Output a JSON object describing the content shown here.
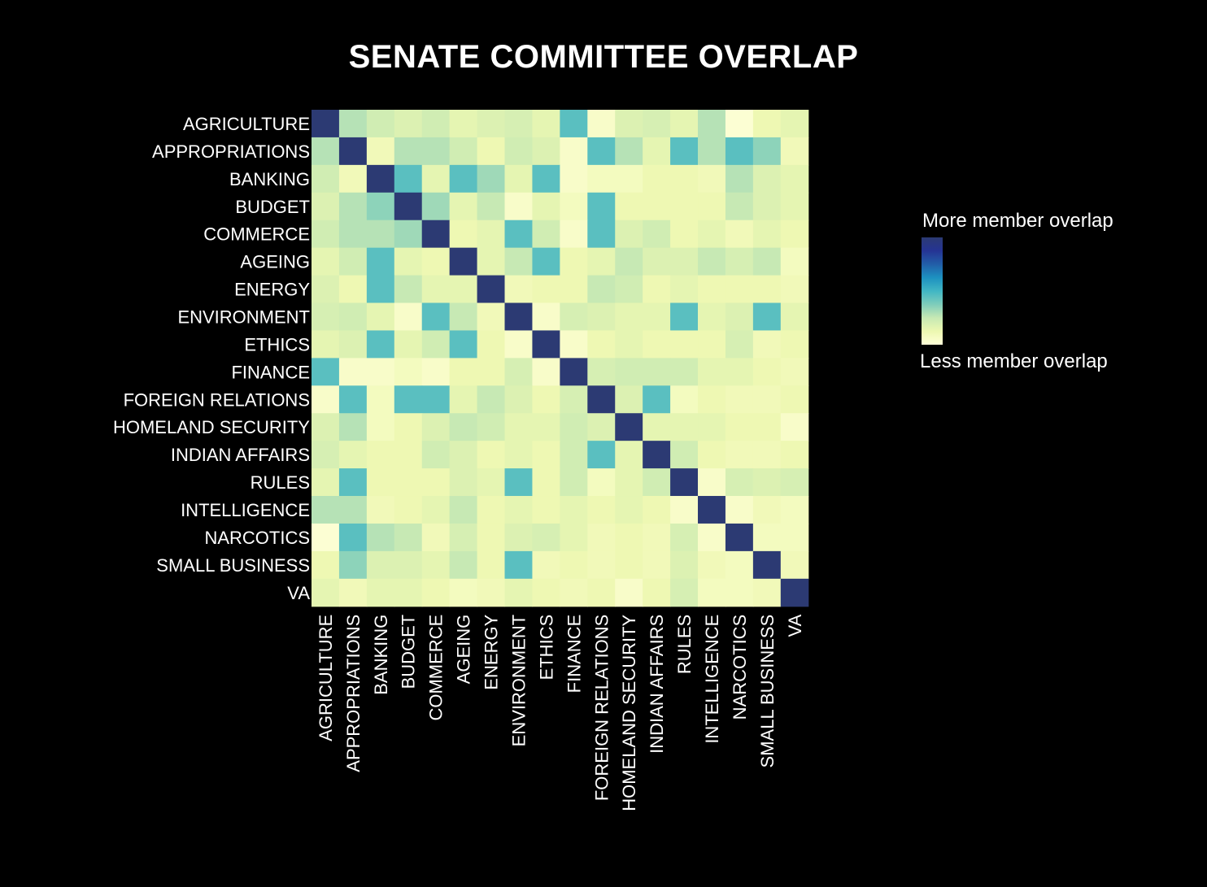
{
  "chart_data": {
    "type": "heatmap",
    "title": "SENATE COMMITTEE OVERLAP",
    "row_labels": [
      "AGRICULTURE",
      "APPROPRIATIONS",
      "BANKING",
      "BUDGET",
      "COMMERCE",
      "AGEING",
      "ENERGY",
      "ENVIRONMENT",
      "ETHICS",
      "FINANCE",
      "FOREIGN RELATIONS",
      "HOMELAND SECURITY",
      "INDIAN AFFAIRS",
      "RULES",
      "INTELLIGENCE",
      "NARCOTICS",
      "SMALL BUSINESS",
      "VA"
    ],
    "col_labels": [
      "AGRICULTURE",
      "APPROPRIATIONS",
      "BANKING",
      "BUDGET",
      "COMMERCE",
      "AGEING",
      "ENERGY",
      "ENVIRONMENT",
      "ETHICS",
      "FINANCE",
      "FOREIGN RELATIONS",
      "HOMELAND SECURITY",
      "INDIAN AFFAIRS",
      "RULES",
      "INTELLIGENCE",
      "NARCOTICS",
      "SMALL BUSINESS",
      "VA"
    ],
    "value_range": [
      0,
      1
    ],
    "values": [
      [
        1.0,
        0.28,
        0.22,
        0.18,
        0.22,
        0.15,
        0.18,
        0.2,
        0.15,
        0.45,
        0.05,
        0.18,
        0.2,
        0.15,
        0.28,
        0.02,
        0.12,
        0.15
      ],
      [
        0.28,
        1.0,
        0.1,
        0.28,
        0.28,
        0.22,
        0.12,
        0.22,
        0.18,
        0.05,
        0.45,
        0.28,
        0.15,
        0.45,
        0.28,
        0.45,
        0.35,
        0.1
      ],
      [
        0.22,
        0.1,
        1.0,
        0.45,
        0.15,
        0.45,
        0.32,
        0.15,
        0.45,
        0.05,
        0.08,
        0.08,
        0.12,
        0.12,
        0.1,
        0.28,
        0.18,
        0.15
      ],
      [
        0.18,
        0.28,
        0.35,
        1.0,
        0.32,
        0.15,
        0.25,
        0.05,
        0.15,
        0.08,
        0.45,
        0.12,
        0.12,
        0.12,
        0.12,
        0.25,
        0.18,
        0.15
      ],
      [
        0.22,
        0.28,
        0.28,
        0.32,
        1.0,
        0.12,
        0.15,
        0.45,
        0.22,
        0.05,
        0.45,
        0.18,
        0.22,
        0.12,
        0.15,
        0.1,
        0.15,
        0.12
      ],
      [
        0.15,
        0.22,
        0.45,
        0.15,
        0.12,
        1.0,
        0.15,
        0.25,
        0.45,
        0.12,
        0.15,
        0.25,
        0.18,
        0.18,
        0.25,
        0.2,
        0.25,
        0.08
      ],
      [
        0.18,
        0.12,
        0.45,
        0.25,
        0.15,
        0.15,
        1.0,
        0.1,
        0.12,
        0.12,
        0.25,
        0.22,
        0.12,
        0.15,
        0.12,
        0.12,
        0.12,
        0.1
      ],
      [
        0.2,
        0.22,
        0.15,
        0.05,
        0.45,
        0.25,
        0.1,
        1.0,
        0.05,
        0.2,
        0.18,
        0.15,
        0.15,
        0.45,
        0.15,
        0.18,
        0.45,
        0.15
      ],
      [
        0.15,
        0.18,
        0.45,
        0.15,
        0.22,
        0.45,
        0.12,
        0.05,
        1.0,
        0.05,
        0.12,
        0.15,
        0.12,
        0.12,
        0.12,
        0.2,
        0.1,
        0.12
      ],
      [
        0.45,
        0.05,
        0.05,
        0.08,
        0.05,
        0.12,
        0.12,
        0.2,
        0.05,
        1.0,
        0.2,
        0.22,
        0.22,
        0.22,
        0.15,
        0.15,
        0.12,
        0.1
      ],
      [
        0.05,
        0.45,
        0.08,
        0.45,
        0.45,
        0.15,
        0.25,
        0.18,
        0.12,
        0.2,
        1.0,
        0.18,
        0.45,
        0.08,
        0.12,
        0.1,
        0.1,
        0.12
      ],
      [
        0.18,
        0.28,
        0.08,
        0.12,
        0.18,
        0.25,
        0.22,
        0.15,
        0.15,
        0.22,
        0.18,
        1.0,
        0.15,
        0.15,
        0.15,
        0.12,
        0.12,
        0.05
      ],
      [
        0.2,
        0.15,
        0.12,
        0.12,
        0.22,
        0.18,
        0.12,
        0.15,
        0.12,
        0.22,
        0.45,
        0.15,
        1.0,
        0.22,
        0.12,
        0.1,
        0.1,
        0.12
      ],
      [
        0.15,
        0.45,
        0.12,
        0.12,
        0.12,
        0.18,
        0.15,
        0.45,
        0.12,
        0.22,
        0.08,
        0.15,
        0.22,
        1.0,
        0.05,
        0.2,
        0.18,
        0.2
      ],
      [
        0.28,
        0.28,
        0.1,
        0.12,
        0.15,
        0.25,
        0.12,
        0.15,
        0.12,
        0.15,
        0.12,
        0.15,
        0.12,
        0.05,
        1.0,
        0.05,
        0.1,
        0.08
      ],
      [
        0.02,
        0.45,
        0.28,
        0.25,
        0.1,
        0.2,
        0.12,
        0.18,
        0.2,
        0.15,
        0.1,
        0.12,
        0.1,
        0.2,
        0.05,
        1.0,
        0.08,
        0.08
      ],
      [
        0.12,
        0.35,
        0.18,
        0.18,
        0.15,
        0.25,
        0.12,
        0.45,
        0.1,
        0.12,
        0.1,
        0.12,
        0.1,
        0.18,
        0.1,
        0.08,
        1.0,
        0.1
      ],
      [
        0.15,
        0.1,
        0.15,
        0.15,
        0.12,
        0.08,
        0.1,
        0.15,
        0.12,
        0.1,
        0.12,
        0.05,
        0.12,
        0.2,
        0.08,
        0.08,
        0.1,
        1.0
      ]
    ],
    "colorscale": [
      "#ffffd9",
      "#edf8b1",
      "#c7e9b4",
      "#7fcdbb",
      "#41b6c4",
      "#1d91c0",
      "#225ea8",
      "#253494",
      "#2c3a73"
    ],
    "legend": {
      "high_label": "More member overlap",
      "low_label": "Less member overlap",
      "placement": "right"
    }
  }
}
